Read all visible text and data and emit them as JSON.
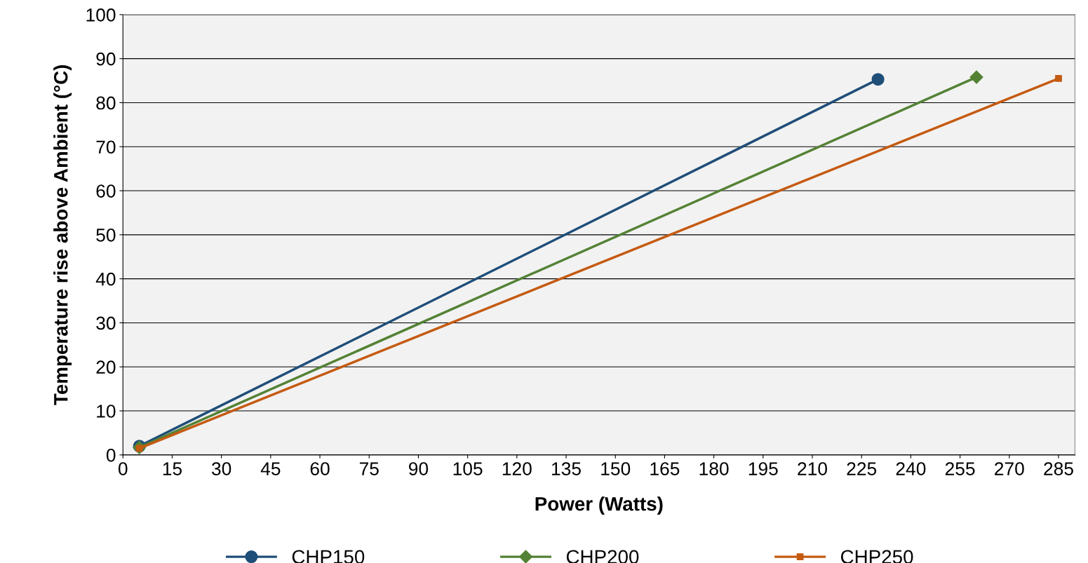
{
  "chart_data": {
    "type": "line",
    "xlabel": "Power (Watts)",
    "ylabel": "Temperature rise above Ambient (°C)",
    "xlim": [
      0,
      290
    ],
    "xticks": [
      0,
      15,
      30,
      45,
      60,
      75,
      90,
      105,
      120,
      135,
      150,
      165,
      180,
      195,
      210,
      225,
      240,
      255,
      270,
      285
    ],
    "ylim": [
      0,
      100
    ],
    "yticks": [
      0,
      10,
      20,
      30,
      40,
      50,
      60,
      70,
      80,
      90,
      100
    ],
    "grid": "y",
    "legend": "bottom",
    "series": [
      {
        "name": "CHP150",
        "color": "#1f4e79",
        "x": [
          5,
          230
        ],
        "values": [
          2,
          85.3
        ],
        "marker": "circle"
      },
      {
        "name": "CHP200",
        "color": "#548235",
        "x": [
          5,
          260
        ],
        "values": [
          1.7,
          85.8
        ],
        "marker": "diamond"
      },
      {
        "name": "CHP250",
        "color": "#c55a11",
        "x": [
          5,
          285
        ],
        "values": [
          1.5,
          85.5
        ],
        "marker": "square"
      }
    ]
  }
}
